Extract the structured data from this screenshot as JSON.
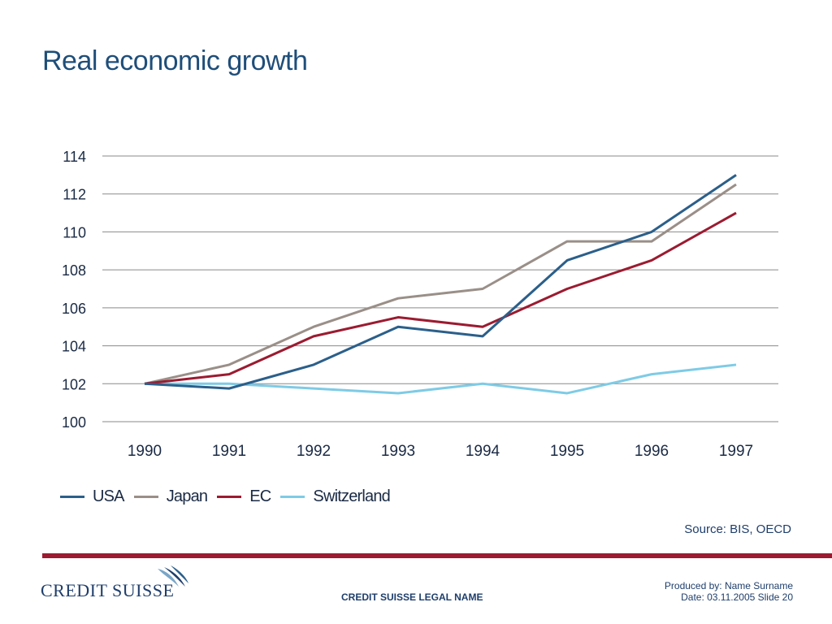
{
  "slide": {
    "title": "Real economic growth",
    "source": "Source: BIS, OECD",
    "legal_name": "CREDIT SUISSE LEGAL NAME",
    "produced_by": "Produced by: Name Surname",
    "date_slide": "Date: 03.11.2005 Slide 20",
    "logo_text": "CREDIT SUISSE"
  },
  "chart_data": {
    "type": "line",
    "title": "",
    "xlabel": "",
    "ylabel": "",
    "categories": [
      "1990",
      "1991",
      "1992",
      "1993",
      "1994",
      "1995",
      "1996",
      "1997"
    ],
    "yticks": [
      100,
      102,
      104,
      106,
      108,
      110,
      112,
      114
    ],
    "ylim": [
      100,
      114
    ],
    "grid": true,
    "legend_position": "bottom-left",
    "series": [
      {
        "name": "USA",
        "color": "#2b5f8a",
        "values": [
          102,
          101.75,
          103,
          105,
          104.5,
          108.5,
          110,
          113
        ]
      },
      {
        "name": "Japan",
        "color": "#9a8f88",
        "values": [
          102,
          103,
          105,
          106.5,
          107,
          109.5,
          109.5,
          112.5
        ]
      },
      {
        "name": "EC",
        "color": "#9b1b30",
        "values": [
          102,
          102.5,
          104.5,
          105.5,
          105,
          107,
          108.5,
          111
        ]
      },
      {
        "name": "Switzerland",
        "color": "#7ecbe6",
        "values": [
          102,
          102,
          101.75,
          101.5,
          102,
          101.5,
          102.5,
          103
        ]
      }
    ]
  },
  "colors": {
    "title": "#1f4e79",
    "accent_bar": "#9b1b30",
    "grid": "#8a8a8a"
  }
}
